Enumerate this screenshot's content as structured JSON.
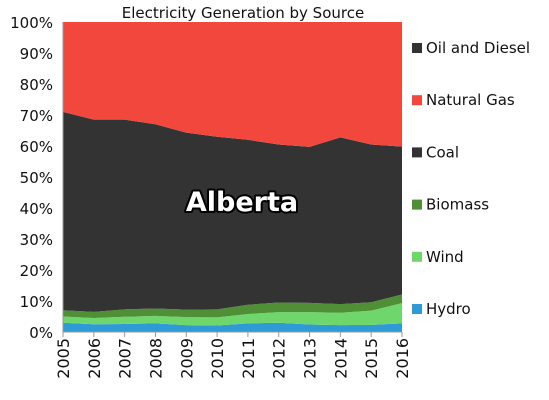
{
  "chart_data": {
    "type": "area",
    "stacked": true,
    "percent": true,
    "title": "Electricity Generation by Source",
    "annotation": "Alberta",
    "xlabel": "",
    "ylabel": "",
    "ylim": [
      0,
      100
    ],
    "grid": false,
    "legend_position": "right",
    "y_ticks": [
      "0%",
      "10%",
      "20%",
      "30%",
      "40%",
      "50%",
      "60%",
      "70%",
      "80%",
      "90%",
      "100%"
    ],
    "x": [
      "2005",
      "2006",
      "2007",
      "2008",
      "2009",
      "2010",
      "2011",
      "2012",
      "2013",
      "2014",
      "2015",
      "2016"
    ],
    "series": [
      {
        "name": "Hydro",
        "color": "#2e9bd6",
        "values": [
          3.0,
          2.5,
          2.6,
          2.8,
          2.2,
          2.1,
          2.8,
          3.0,
          2.4,
          2.2,
          2.3,
          2.8
        ]
      },
      {
        "name": "Wind",
        "color": "#6fd66b",
        "values": [
          2.0,
          2.0,
          2.3,
          2.4,
          2.6,
          2.6,
          3.0,
          3.4,
          4.0,
          4.0,
          4.6,
          6.5
        ]
      },
      {
        "name": "Biomass",
        "color": "#4f8f36",
        "values": [
          2.0,
          2.0,
          2.4,
          2.4,
          2.4,
          2.6,
          3.0,
          3.1,
          3.0,
          2.8,
          2.7,
          2.8
        ]
      },
      {
        "name": "Coal",
        "color": "#333333",
        "values": [
          64.0,
          62.0,
          61.2,
          59.4,
          57.1,
          55.7,
          53.2,
          51.0,
          50.3,
          53.8,
          50.9,
          47.7
        ]
      },
      {
        "name": "Natural Gas",
        "color": "#f2473c",
        "values": [
          29.0,
          31.5,
          31.5,
          33.0,
          35.7,
          37.0,
          38.0,
          39.5,
          40.3,
          37.2,
          39.5,
          40.2
        ]
      },
      {
        "name": "Oil and Diesel",
        "color": "#333333",
        "values": [
          0,
          0,
          0,
          0,
          0,
          0,
          0,
          0,
          0,
          0,
          0,
          0
        ]
      }
    ]
  }
}
